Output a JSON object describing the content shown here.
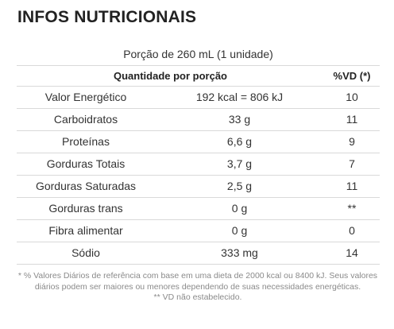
{
  "title": "INFOS NUTRICIONAIS",
  "serving": "Porção de 260 mL (1 unidade)",
  "header": {
    "quantity": "Quantidade por porção",
    "vd": "%VD (*)"
  },
  "rows": [
    {
      "name": "Valor Energético",
      "quantity": "192 kcal = 806 kJ",
      "vd": "10"
    },
    {
      "name": "Carboidratos",
      "quantity": "33 g",
      "vd": "11"
    },
    {
      "name": "Proteínas",
      "quantity": "6,6 g",
      "vd": "9"
    },
    {
      "name": "Gorduras Totais",
      "quantity": "3,7 g",
      "vd": "7"
    },
    {
      "name": "Gorduras Saturadas",
      "quantity": "2,5 g",
      "vd": "11"
    },
    {
      "name": "Gorduras trans",
      "quantity": "0 g",
      "vd": "**"
    },
    {
      "name": "Fibra alimentar",
      "quantity": "0 g",
      "vd": "0"
    },
    {
      "name": "Sódio",
      "quantity": "333 mg",
      "vd": "14"
    }
  ],
  "footnotes": {
    "vd_note": "* % Valores Diários de referência com base em uma dieta de 2000 kcal ou 8400 kJ. Seus valores diários podem ser maiores ou menores dependendo de suas necessidades energéticas.",
    "not_established": "** VD não estabelecido."
  }
}
